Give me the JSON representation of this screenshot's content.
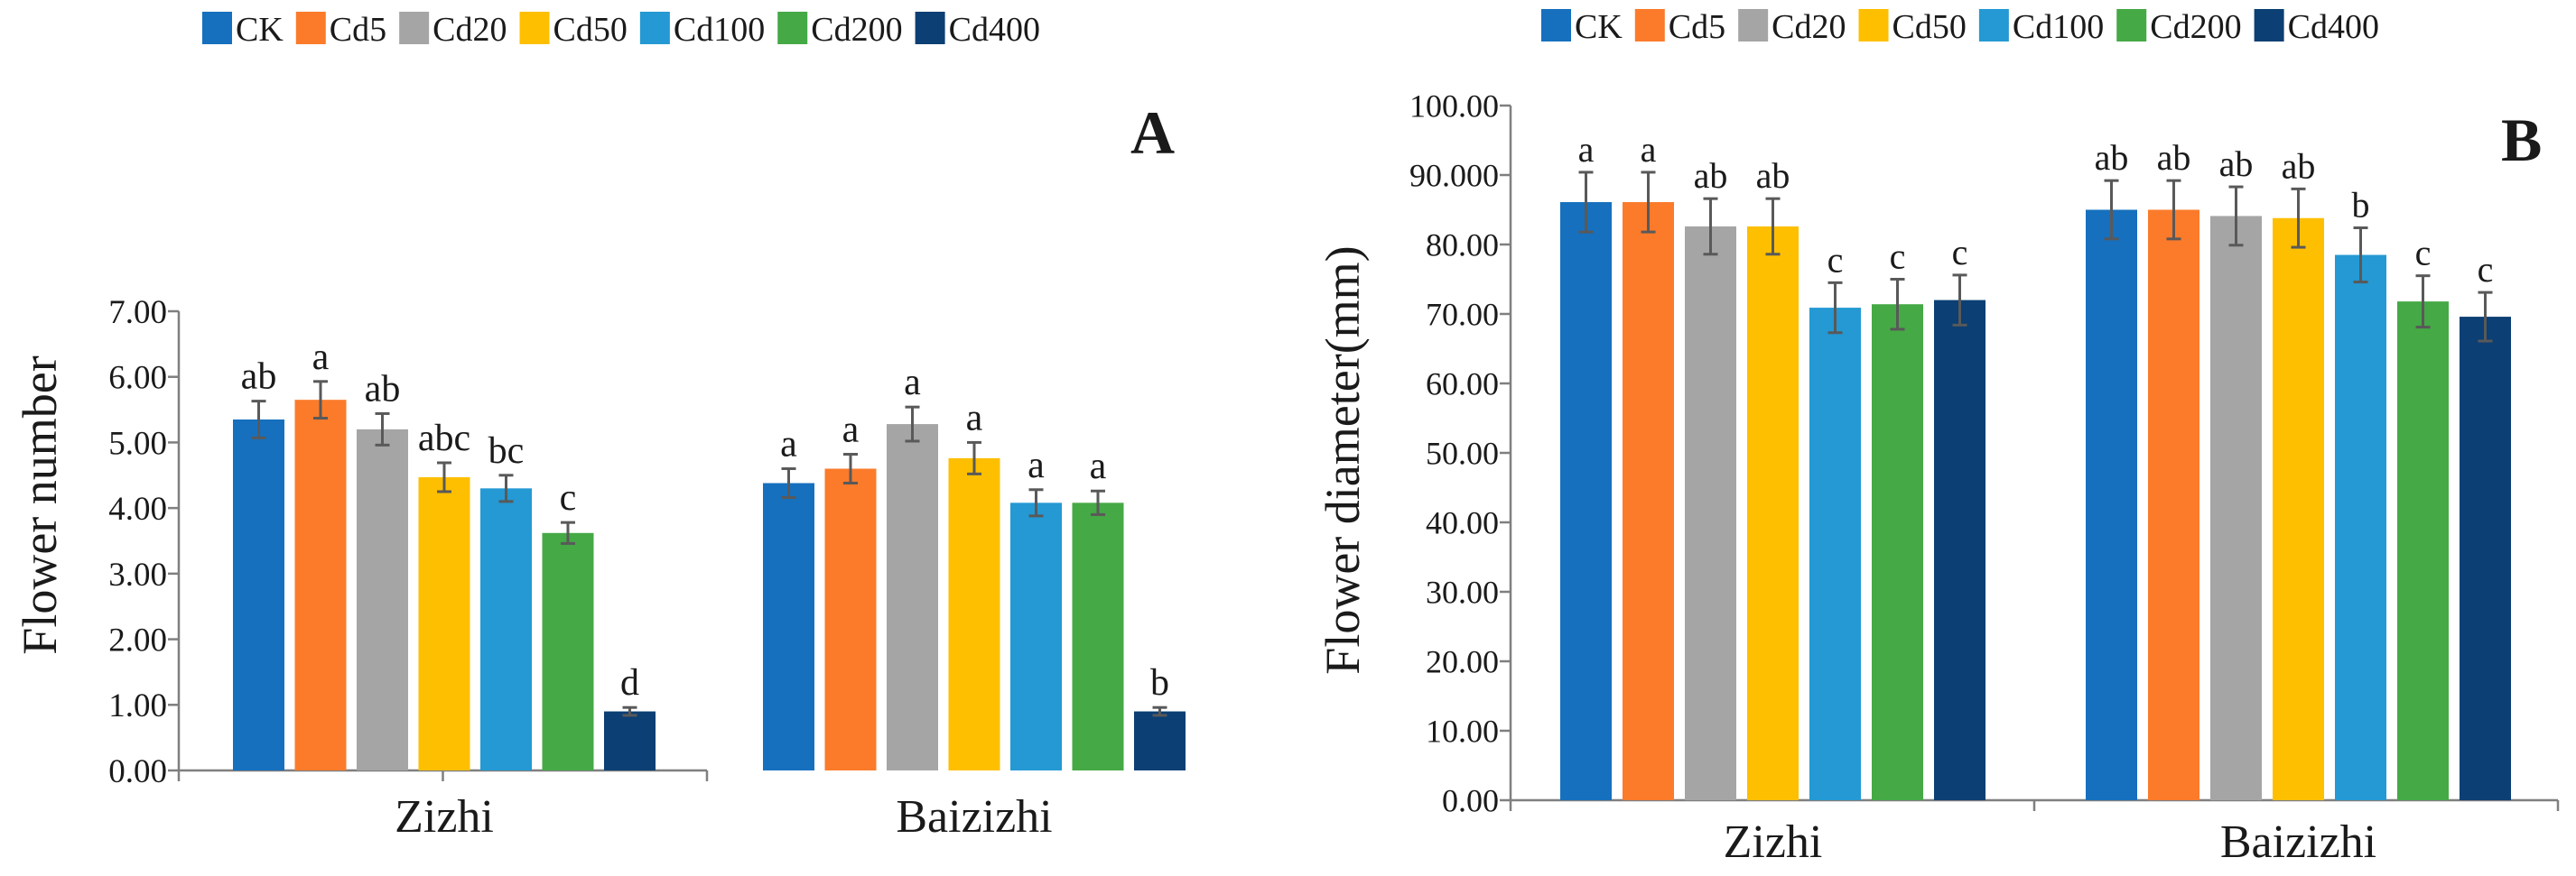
{
  "legend": [
    "CK",
    "Cd5",
    "Cd20",
    "Cd50",
    "Cd100",
    "Cd200",
    "Cd400"
  ],
  "colors": {
    "CK": "#1670BE",
    "Cd5": "#FB7B2B",
    "Cd20": "#A5A5A5",
    "Cd50": "#FEBF00",
    "Cd100": "#2499D3",
    "Cd200": "#45A946",
    "Cd400": "#0C3F73",
    "axis": "#7F7F7F",
    "errorbar": "#595959",
    "text": "#1a1a1a"
  },
  "chart_data": [
    {
      "type": "bar",
      "panel_label": "A",
      "ylabel": "Flower number",
      "xlabel": "",
      "categories": [
        "Zizhi",
        "Baizizhi"
      ],
      "ylim": [
        0,
        7
      ],
      "yticks": [
        "0.00",
        "1.00",
        "2.00",
        "3.00",
        "4.00",
        "5.00",
        "6.00",
        "7.00"
      ],
      "legend_position": "top",
      "grid": false,
      "series": [
        {
          "name": "CK",
          "values": [
            5.35,
            4.38
          ],
          "errors": [
            0.28,
            0.22
          ],
          "letters": [
            "ab",
            "a"
          ]
        },
        {
          "name": "Cd5",
          "values": [
            5.65,
            4.6
          ],
          "errors": [
            0.28,
            0.22
          ],
          "letters": [
            "a",
            "a"
          ]
        },
        {
          "name": "Cd20",
          "values": [
            5.2,
            5.28
          ],
          "errors": [
            0.24,
            0.26
          ],
          "letters": [
            "ab",
            "a"
          ]
        },
        {
          "name": "Cd50",
          "values": [
            4.47,
            4.76
          ],
          "errors": [
            0.22,
            0.24
          ],
          "letters": [
            "abc",
            "a"
          ]
        },
        {
          "name": "Cd100",
          "values": [
            4.3,
            4.08
          ],
          "errors": [
            0.2,
            0.2
          ],
          "letters": [
            "bc",
            "a"
          ]
        },
        {
          "name": "Cd200",
          "values": [
            3.62,
            4.08
          ],
          "errors": [
            0.16,
            0.18
          ],
          "letters": [
            "c",
            "a"
          ]
        },
        {
          "name": "Cd400",
          "values": [
            0.9,
            0.9
          ],
          "errors": [
            0.06,
            0.06
          ],
          "letters": [
            "d",
            "b"
          ]
        }
      ]
    },
    {
      "type": "bar",
      "panel_label": "B",
      "ylabel": "Flower diameter(mm)",
      "xlabel": "",
      "categories": [
        "Zizhi",
        "Baizizhi"
      ],
      "ylim": [
        0,
        100
      ],
      "yticks": [
        "0.00",
        "10.00",
        "20.00",
        "30.00",
        "40.00",
        "50.00",
        "60.00",
        "70.00",
        "80.00",
        "90.000",
        "100.00"
      ],
      "legend_position": "top",
      "grid": false,
      "series": [
        {
          "name": "CK",
          "values": [
            86.1,
            85.0
          ],
          "errors": [
            4.3,
            4.2
          ],
          "letters": [
            "a",
            "ab"
          ]
        },
        {
          "name": "Cd5",
          "values": [
            86.1,
            85.0
          ],
          "errors": [
            4.3,
            4.2
          ],
          "letters": [
            "a",
            "ab"
          ]
        },
        {
          "name": "Cd20",
          "values": [
            82.6,
            84.1
          ],
          "errors": [
            4.0,
            4.2
          ],
          "letters": [
            "ab",
            "ab"
          ]
        },
        {
          "name": "Cd50",
          "values": [
            82.6,
            83.8
          ],
          "errors": [
            4.0,
            4.2
          ],
          "letters": [
            "ab",
            "ab"
          ]
        },
        {
          "name": "Cd100",
          "values": [
            70.9,
            78.5
          ],
          "errors": [
            3.6,
            3.9
          ],
          "letters": [
            "c",
            "b"
          ]
        },
        {
          "name": "Cd200",
          "values": [
            71.4,
            71.8
          ],
          "errors": [
            3.6,
            3.7
          ],
          "letters": [
            "c",
            "c"
          ]
        },
        {
          "name": "Cd400",
          "values": [
            72.0,
            69.6
          ],
          "errors": [
            3.6,
            3.5
          ],
          "letters": [
            "c",
            "c"
          ]
        }
      ]
    }
  ]
}
